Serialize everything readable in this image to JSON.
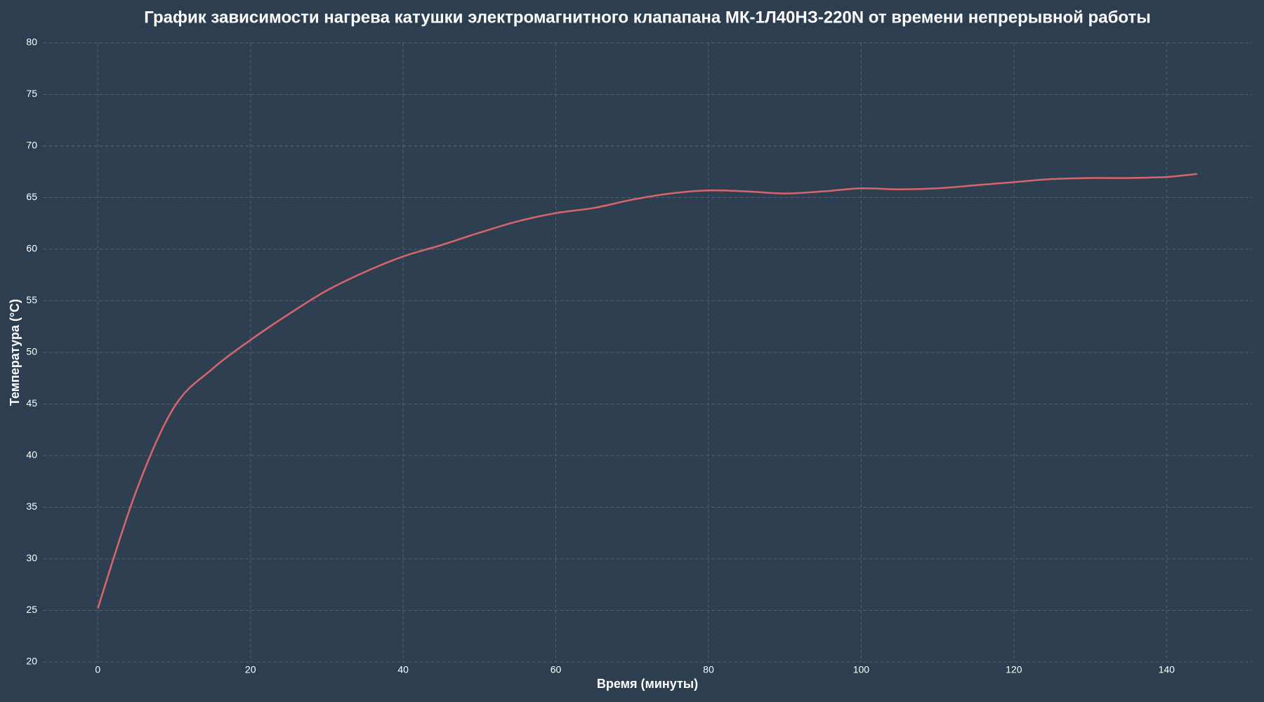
{
  "chart_data": {
    "type": "line",
    "title": "График зависимости нагрева катушки электромагнитного клапапана МК-1Л40НЗ-220N от времени непрерывной работы",
    "x_label": "Время (минуты)",
    "y_label": "Температура (°C)",
    "x": [
      0,
      5,
      10,
      15,
      20,
      25,
      30,
      35,
      40,
      45,
      50,
      55,
      60,
      65,
      70,
      75,
      80,
      85,
      90,
      95,
      100,
      105,
      110,
      115,
      120,
      125,
      130,
      135,
      140,
      144
    ],
    "series": [
      {
        "name": "Температура",
        "color": "#d9656c",
        "values": [
          25.2,
          36.5,
          44.7,
          48.4,
          51.2,
          53.7,
          56.0,
          57.8,
          59.3,
          60.4,
          61.6,
          62.7,
          63.5,
          64.0,
          64.8,
          65.4,
          65.7,
          65.6,
          65.4,
          65.6,
          65.9,
          65.8,
          65.9,
          66.2,
          66.5,
          66.8,
          66.9,
          66.9,
          67.0,
          67.3
        ]
      }
    ],
    "xlim": [
      -7.2,
      151.2
    ],
    "ylim": [
      20,
      80
    ],
    "xticks": [
      0,
      20,
      40,
      60,
      80,
      100,
      120,
      140
    ],
    "yticks": [
      20,
      25,
      30,
      35,
      40,
      45,
      50,
      55,
      60,
      65,
      70,
      75,
      80
    ],
    "grid": true
  }
}
